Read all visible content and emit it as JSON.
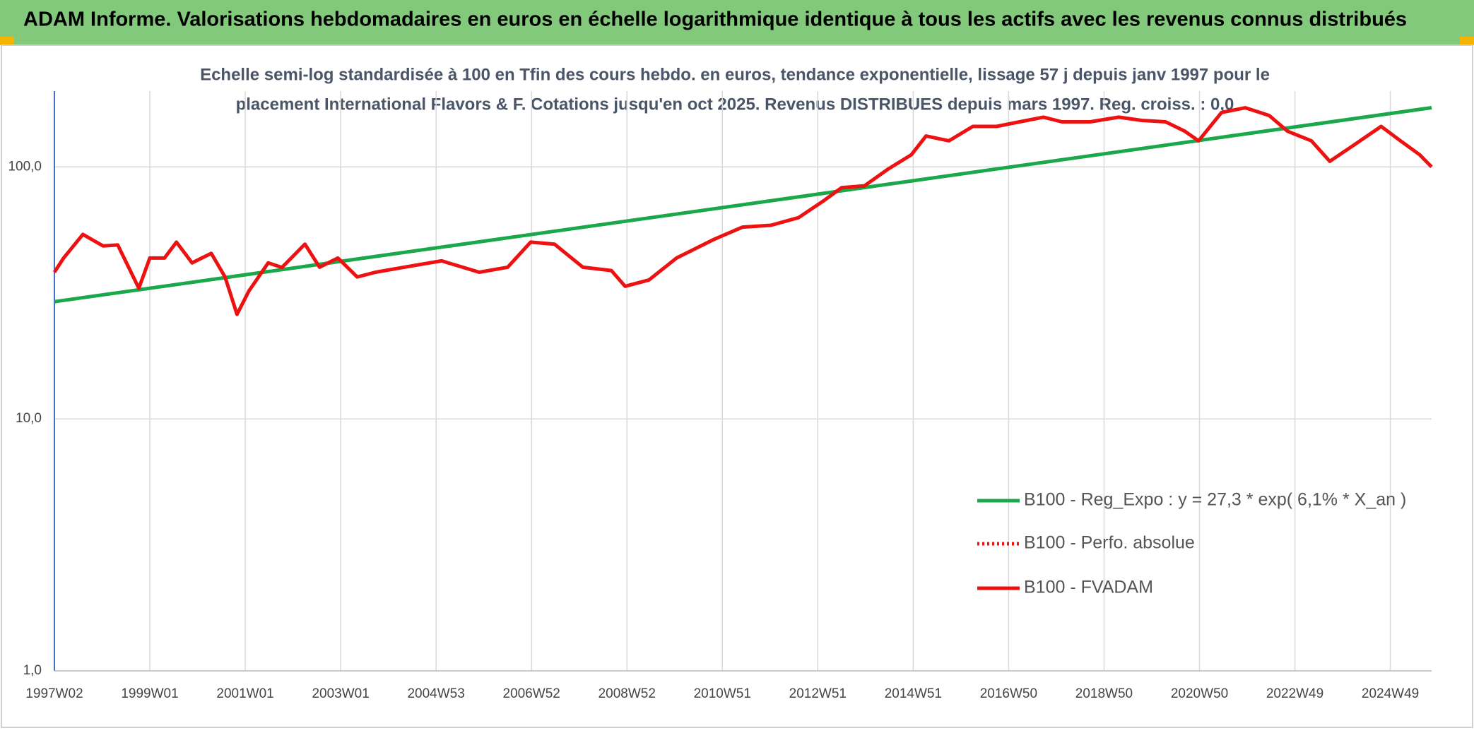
{
  "chart_data": {
    "type": "line",
    "title": "ADAM Informe. Valorisations hebdomadaires en euros en échelle logarithmique identique à tous les actifs avec les revenus connus distribués",
    "subtitle": [
      "Echelle semi-log standardisée à 100 en Tfin des cours hebdo. en euros, tendance exponentielle, lissage 57 j depuis janv 1997 pour le",
      "placement International Flavors & F. Cotations jusqu'en oct 2025. Revenus DISTRIBUES depuis mars 1997. Reg. croiss. : 0,0"
    ],
    "log_scale": true,
    "grid": true,
    "legend": "right",
    "xlim": [
      0,
      1501
    ],
    "xticks": [
      {
        "value": 0,
        "label": "1997W02"
      },
      {
        "value": 104,
        "label": "1999W01"
      },
      {
        "value": 208,
        "label": "2001W01"
      },
      {
        "value": 312,
        "label": "2003W01"
      },
      {
        "value": 416,
        "label": "2004W53"
      },
      {
        "value": 520,
        "label": "2006W52"
      },
      {
        "value": 624,
        "label": "2008W52"
      },
      {
        "value": 728,
        "label": "2010W51"
      },
      {
        "value": 832,
        "label": "2012W51"
      },
      {
        "value": 936,
        "label": "2014W51"
      },
      {
        "value": 1040,
        "label": "2016W50"
      },
      {
        "value": 1144,
        "label": "2018W50"
      },
      {
        "value": 1248,
        "label": "2020W50"
      },
      {
        "value": 1352,
        "label": "2022W49"
      },
      {
        "value": 1456,
        "label": "2024W49"
      }
    ],
    "ylim": [
      1,
      200
    ],
    "yticks": [
      {
        "value": 1,
        "label": "1,0"
      },
      {
        "value": 10,
        "label": "10,0"
      },
      {
        "value": 100,
        "label": "100,0"
      }
    ],
    "series": [
      {
        "name": "B100 - Reg_Expo : y = 27,3 * exp( 6,1% *  X_an )",
        "color": "#1aa84a",
        "style": "solid",
        "x": [
          0,
          1501
        ],
        "values": [
          29.2,
          171.9
        ]
      },
      {
        "name": "B100 - Perfo. absolue",
        "color": "#ee1111",
        "style": "dotted"
      },
      {
        "name": "B100 - FVADAM",
        "color": "#ee1111",
        "style": "solid",
        "x": [
          0,
          10,
          31,
          53,
          69,
          92,
          104,
          120,
          133,
          150,
          171,
          186,
          199,
          212,
          233,
          248,
          273,
          289,
          309,
          330,
          350,
          381,
          422,
          463,
          494,
          519,
          545,
          576,
          607,
          622,
          648,
          678,
          719,
          750,
          781,
          811,
          837,
          858,
          883,
          909,
          934,
          950,
          975,
          1001,
          1027,
          1052,
          1078,
          1098,
          1129,
          1160,
          1185,
          1211,
          1232,
          1247,
          1272,
          1298,
          1324,
          1344,
          1370,
          1390,
          1416,
          1446,
          1467,
          1488,
          1501
        ],
        "values": [
          38.2,
          43.5,
          54,
          48.6,
          49,
          33,
          43.5,
          43.5,
          50.3,
          41.6,
          45.4,
          36.6,
          26,
          32.2,
          41.6,
          39.9,
          49.4,
          40,
          43.5,
          36.6,
          38.2,
          40,
          42.4,
          38.2,
          40,
          50.3,
          49.4,
          40,
          38.8,
          33.6,
          35.6,
          43.5,
          51.6,
          57.7,
          58.7,
          62.9,
          72.8,
          82.8,
          84.2,
          98.3,
          111.8,
          132.7,
          127,
          144.8,
          144.8,
          151,
          157.6,
          151,
          151,
          157.6,
          153,
          151,
          138.6,
          127,
          164.5,
          171.7,
          160,
          138.6,
          127,
          105.3,
          121.9,
          144.8,
          127,
          111.8,
          100
        ]
      }
    ]
  }
}
